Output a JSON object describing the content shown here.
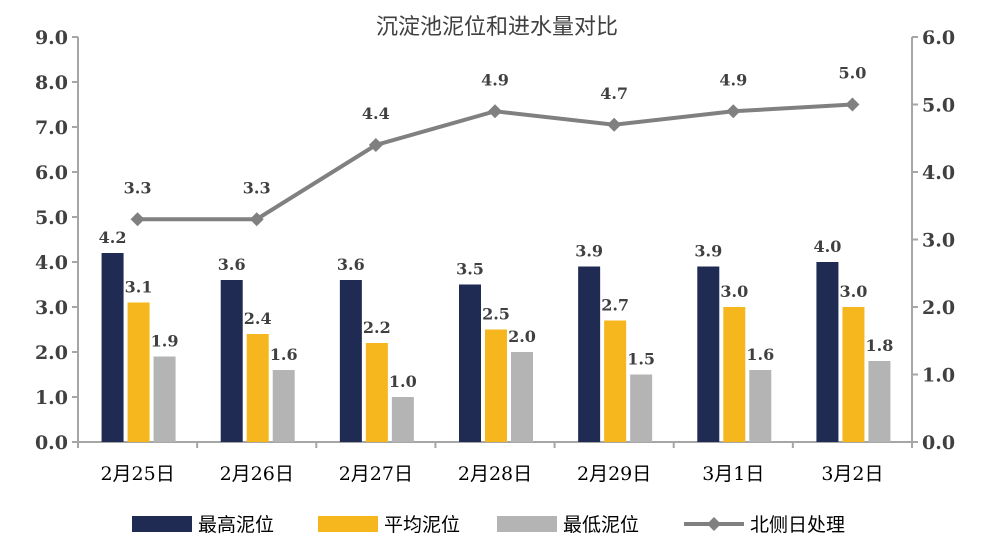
{
  "chart_data": {
    "type": "bar",
    "title": "沉淀池泥位和进水量对比",
    "categories": [
      "2月25日",
      "2月26日",
      "2月27日",
      "2月28日",
      "2月29日",
      "3月1日",
      "3月2日"
    ],
    "series": [
      {
        "name": "最高泥位",
        "type": "bar",
        "axis": "left",
        "color": "#1f2b52",
        "values": [
          4.2,
          3.6,
          3.6,
          3.5,
          3.9,
          3.9,
          4.0
        ]
      },
      {
        "name": "平均泥位",
        "type": "bar",
        "axis": "left",
        "color": "#f5b71d",
        "values": [
          3.1,
          2.4,
          2.2,
          2.5,
          2.7,
          3.0,
          3.0
        ]
      },
      {
        "name": "最低泥位",
        "type": "bar",
        "axis": "left",
        "color": "#b4b4b4",
        "values": [
          1.9,
          1.6,
          1.0,
          2.0,
          1.5,
          1.6,
          1.8
        ]
      },
      {
        "name": "北侧日处理",
        "type": "line",
        "axis": "right",
        "color": "#808080",
        "values": [
          3.3,
          3.3,
          4.4,
          4.9,
          4.7,
          4.9,
          5.0
        ]
      }
    ],
    "left_axis": {
      "min": 0,
      "max": 9,
      "step": 1,
      "ticks": [
        "0.0",
        "1.0",
        "2.0",
        "3.0",
        "4.0",
        "5.0",
        "6.0",
        "7.0",
        "8.0",
        "9.0"
      ]
    },
    "right_axis": {
      "min": 0,
      "max": 6,
      "step": 1,
      "ticks": [
        "0.0",
        "1.0",
        "2.0",
        "3.0",
        "4.0",
        "5.0",
        "6.0"
      ]
    },
    "legend_position": "bottom",
    "grid": false
  }
}
